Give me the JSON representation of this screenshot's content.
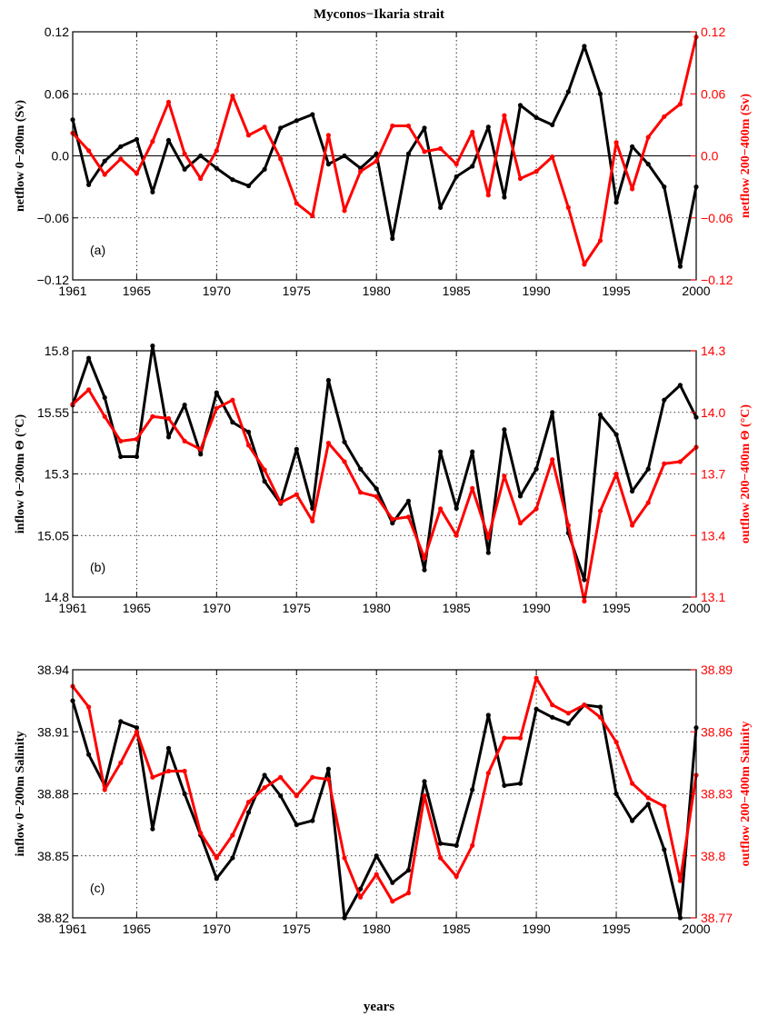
{
  "figure": {
    "title": "Myconos−Ikaria strait",
    "xlabel": "years"
  },
  "chart_data": [
    {
      "type": "line",
      "panel_label": "(a)",
      "x": [
        1961,
        1962,
        1963,
        1964,
        1965,
        1966,
        1967,
        1968,
        1969,
        1970,
        1971,
        1972,
        1973,
        1974,
        1975,
        1976,
        1977,
        1978,
        1979,
        1980,
        1981,
        1982,
        1983,
        1984,
        1985,
        1986,
        1987,
        1988,
        1989,
        1990,
        1991,
        1992,
        1993,
        1994,
        1995,
        1996,
        1997,
        1998,
        1999,
        2000
      ],
      "xlim": [
        1961,
        2000
      ],
      "xticks": [
        "1961",
        "1965",
        "1970",
        "1975",
        "1980",
        "1985",
        "1990",
        "1995",
        "2000"
      ],
      "ylabel": "netflow 0−200m (Sv)",
      "ylim": [
        -0.12,
        0.12
      ],
      "yticks": [
        "−0.12",
        "−0.06",
        "0.0",
        "0.06",
        "0.12"
      ],
      "ylabel_right": "netflow 200−400m (Sv)",
      "ylim_right": [
        -0.12,
        0.12
      ],
      "yticks_right": [
        "−0.12",
        "−0.06",
        "0.0",
        "0.06",
        "0.12"
      ],
      "zero_line": true,
      "grid": true,
      "series": [
        {
          "axis": "left",
          "color": "#000000",
          "values": [
            0.035,
            -0.028,
            -0.005,
            0.009,
            0.016,
            -0.035,
            0.015,
            -0.013,
            0.0,
            -0.012,
            -0.023,
            -0.029,
            -0.013,
            0.027,
            0.034,
            0.04,
            -0.008,
            0.0,
            -0.012,
            0.002,
            -0.08,
            0.002,
            0.027,
            -0.05,
            -0.02,
            -0.01,
            0.028,
            -0.04,
            0.049,
            0.037,
            0.03,
            0.062,
            0.106,
            0.06,
            -0.045,
            0.009,
            -0.008,
            -0.03,
            -0.107,
            -0.03
          ]
        },
        {
          "axis": "right",
          "color": "#ff0000",
          "values": [
            0.022,
            0.005,
            -0.018,
            -0.003,
            -0.017,
            0.014,
            0.052,
            0.002,
            -0.022,
            0.005,
            0.058,
            0.02,
            0.028,
            -0.003,
            -0.046,
            -0.058,
            0.02,
            -0.053,
            -0.015,
            -0.005,
            0.029,
            0.029,
            0.004,
            0.007,
            -0.008,
            0.023,
            -0.038,
            0.039,
            -0.022,
            -0.015,
            -0.001,
            -0.05,
            -0.105,
            -0.082,
            0.013,
            -0.032,
            0.018,
            0.038,
            0.05,
            0.115
          ]
        }
      ]
    },
    {
      "type": "line",
      "panel_label": "(b)",
      "x": [
        1961,
        1962,
        1963,
        1964,
        1965,
        1966,
        1967,
        1968,
        1969,
        1970,
        1971,
        1972,
        1973,
        1974,
        1975,
        1976,
        1977,
        1978,
        1979,
        1980,
        1981,
        1982,
        1983,
        1984,
        1985,
        1986,
        1987,
        1988,
        1989,
        1990,
        1991,
        1992,
        1993,
        1994,
        1995,
        1996,
        1997,
        1998,
        1999,
        2000
      ],
      "xlim": [
        1961,
        2000
      ],
      "xticks": [
        "1961",
        "1965",
        "1970",
        "1975",
        "1980",
        "1985",
        "1990",
        "1995",
        "2000"
      ],
      "ylabel": "inflow 0−200m Θ (°C)",
      "ylim": [
        14.8,
        15.8
      ],
      "yticks": [
        "14.8",
        "15.05",
        "15.3",
        "15.55",
        "15.8"
      ],
      "ylabel_right": "outflow 200−400m Θ (°C)",
      "ylim_right": [
        13.1,
        14.3
      ],
      "yticks_right": [
        "13.1",
        "13.4",
        "13.7",
        "14.0",
        "14.3"
      ],
      "zero_line": false,
      "grid": true,
      "series": [
        {
          "axis": "left",
          "color": "#000000",
          "values": [
            15.58,
            15.77,
            15.61,
            15.37,
            15.37,
            15.82,
            15.45,
            15.58,
            15.38,
            15.63,
            15.51,
            15.47,
            15.27,
            15.18,
            15.4,
            15.16,
            15.68,
            15.43,
            15.32,
            15.24,
            15.1,
            15.19,
            14.91,
            15.39,
            15.16,
            15.39,
            14.98,
            15.48,
            15.21,
            15.32,
            15.55,
            15.06,
            14.87,
            15.54,
            15.46,
            15.23,
            15.32,
            15.6,
            15.66,
            15.53
          ]
        },
        {
          "axis": "right",
          "color": "#ff0000",
          "values": [
            14.04,
            14.11,
            13.98,
            13.86,
            13.87,
            13.98,
            13.97,
            13.86,
            13.82,
            14.02,
            14.06,
            13.84,
            13.72,
            13.56,
            13.6,
            13.47,
            13.85,
            13.76,
            13.61,
            13.59,
            13.48,
            13.49,
            13.29,
            13.53,
            13.4,
            13.63,
            13.39,
            13.69,
            13.46,
            13.53,
            13.77,
            13.45,
            13.08,
            13.52,
            13.7,
            13.45,
            13.56,
            13.75,
            13.76,
            13.83
          ]
        }
      ]
    },
    {
      "type": "line",
      "panel_label": "(c)",
      "x": [
        1961,
        1962,
        1963,
        1964,
        1965,
        1966,
        1967,
        1968,
        1969,
        1970,
        1971,
        1972,
        1973,
        1974,
        1975,
        1976,
        1977,
        1978,
        1979,
        1980,
        1981,
        1982,
        1983,
        1984,
        1985,
        1986,
        1987,
        1988,
        1989,
        1990,
        1991,
        1992,
        1993,
        1994,
        1995,
        1996,
        1997,
        1998,
        1999,
        2000
      ],
      "xlim": [
        1961,
        2000
      ],
      "xticks": [
        "1961",
        "1965",
        "1970",
        "1975",
        "1980",
        "1985",
        "1990",
        "1995",
        "2000"
      ],
      "ylabel": "inflow 0−200m Salinity",
      "ylim": [
        38.82,
        38.94
      ],
      "yticks": [
        "38.82",
        "38.85",
        "38.88",
        "38.91",
        "38.94"
      ],
      "ylabel_right": "outflow 200−400m Salinity",
      "ylim_right": [
        38.77,
        38.89
      ],
      "yticks_right": [
        "38.77",
        "38.8",
        "38.83",
        "38.86",
        "38.89"
      ],
      "zero_line": false,
      "grid": true,
      "xlabel": "years",
      "series": [
        {
          "axis": "left",
          "color": "#000000",
          "values": [
            38.925,
            38.899,
            38.884,
            38.915,
            38.912,
            38.863,
            38.902,
            38.88,
            38.86,
            38.839,
            38.849,
            38.871,
            38.889,
            38.879,
            38.865,
            38.867,
            38.892,
            38.82,
            38.834,
            38.85,
            38.837,
            38.843,
            38.886,
            38.856,
            38.855,
            38.882,
            38.918,
            38.884,
            38.885,
            38.921,
            38.917,
            38.914,
            38.923,
            38.922,
            38.88,
            38.867,
            38.875,
            38.853,
            38.82,
            38.912
          ]
        },
        {
          "axis": "right",
          "color": "#ff0000",
          "values": [
            38.882,
            38.872,
            38.832,
            38.845,
            38.86,
            38.838,
            38.841,
            38.841,
            38.811,
            38.799,
            38.81,
            38.826,
            38.833,
            38.838,
            38.829,
            38.838,
            38.837,
            38.799,
            38.78,
            38.791,
            38.778,
            38.782,
            38.829,
            38.799,
            38.79,
            38.805,
            38.84,
            38.857,
            38.857,
            38.886,
            38.873,
            38.869,
            38.873,
            38.867,
            38.855,
            38.835,
            38.828,
            38.824,
            38.788,
            38.839
          ]
        }
      ]
    }
  ]
}
